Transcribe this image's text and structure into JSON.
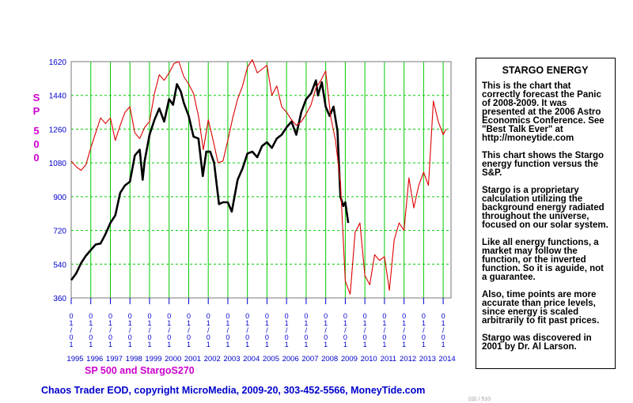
{
  "chart_data": {
    "type": "line",
    "ylabel": "SP 500",
    "legend_title": "SP 500 and StargoS270",
    "ylim": [
      360,
      1620
    ],
    "y_ticks": [
      360,
      540,
      720,
      900,
      1080,
      1260,
      1440,
      1620
    ],
    "y_tick_labels": [
      "360",
      "540",
      "720",
      "900",
      "1080",
      "1260",
      "1440",
      "1620"
    ],
    "xlim": [
      1995.0,
      2014.4
    ],
    "x_ticks": [
      1995,
      1996,
      1997,
      1998,
      1999,
      2000,
      2001,
      2002,
      2003,
      2004,
      2005,
      2006,
      2007,
      2008,
      2009,
      2010,
      2011,
      2012,
      2013,
      2014
    ],
    "x_year_labels": [
      "1995",
      "1996",
      "1997",
      "1998",
      "1999",
      "2000",
      "2001",
      "2002",
      "2003",
      "2004",
      "2005",
      "2006",
      "2007",
      "2008",
      "2009",
      "2010",
      "2011",
      "2012",
      "2013",
      "2014"
    ],
    "x_date_label": "01/01",
    "grid": true,
    "series": [
      {
        "name": "SP 500",
        "color": "#000000",
        "x": [
          1995.0,
          1995.25,
          1995.5,
          1995.75,
          1996.0,
          1996.25,
          1996.5,
          1996.75,
          1997.0,
          1997.25,
          1997.5,
          1997.75,
          1998.0,
          1998.25,
          1998.5,
          1998.65,
          1998.75,
          1999.0,
          1999.25,
          1999.5,
          1999.75,
          2000.0,
          2000.2,
          2000.4,
          2000.6,
          2000.75,
          2001.0,
          2001.25,
          2001.5,
          2001.72,
          2001.9,
          2002.1,
          2002.3,
          2002.55,
          2002.75,
          2003.0,
          2003.2,
          2003.5,
          2003.75,
          2004.0,
          2004.25,
          2004.5,
          2004.75,
          2005.0,
          2005.25,
          2005.5,
          2005.75,
          2006.0,
          2006.25,
          2006.5,
          2006.75,
          2007.0,
          2007.25,
          2007.5,
          2007.6,
          2007.8,
          2008.0,
          2008.2,
          2008.4,
          2008.6,
          2008.75,
          2008.9,
          2009.0,
          2009.15
        ],
        "values": [
          455,
          490,
          545,
          585,
          615,
          645,
          650,
          700,
          760,
          800,
          920,
          960,
          980,
          1120,
          1150,
          990,
          1090,
          1230,
          1310,
          1370,
          1300,
          1420,
          1390,
          1500,
          1460,
          1400,
          1330,
          1220,
          1210,
          1010,
          1140,
          1140,
          1080,
          860,
          870,
          870,
          820,
          990,
          1050,
          1130,
          1140,
          1110,
          1170,
          1190,
          1160,
          1210,
          1230,
          1270,
          1300,
          1230,
          1350,
          1420,
          1450,
          1520,
          1440,
          1510,
          1380,
          1330,
          1380,
          1250,
          900,
          850,
          870,
          760
        ]
      },
      {
        "name": "StargoS270",
        "color": "#dd0000",
        "x": [
          1995.0,
          1995.25,
          1995.5,
          1995.75,
          1996.0,
          1996.25,
          1996.5,
          1996.75,
          1997.0,
          1997.25,
          1997.5,
          1997.75,
          1998.0,
          1998.25,
          1998.5,
          1998.75,
          1999.0,
          1999.25,
          1999.5,
          1999.75,
          2000.0,
          2000.25,
          2000.5,
          2000.75,
          2001.0,
          2001.25,
          2001.5,
          2001.75,
          2002.0,
          2002.25,
          2002.5,
          2002.75,
          2003.0,
          2003.25,
          2003.5,
          2003.75,
          2004.0,
          2004.25,
          2004.5,
          2004.75,
          2005.0,
          2005.25,
          2005.5,
          2005.75,
          2006.0,
          2006.25,
          2006.5,
          2006.75,
          2007.0,
          2007.25,
          2007.5,
          2007.75,
          2008.0,
          2008.25,
          2008.5,
          2008.75,
          2009.0,
          2009.25,
          2009.5,
          2009.75,
          2010.0,
          2010.25,
          2010.5,
          2010.75,
          2011.0,
          2011.25,
          2011.5,
          2011.75,
          2012.0,
          2012.25,
          2012.5,
          2012.75,
          2013.0,
          2013.25,
          2013.5,
          2013.75,
          2014.0,
          2014.15
        ],
        "values": [
          1090,
          1060,
          1040,
          1070,
          1160,
          1240,
          1320,
          1290,
          1320,
          1200,
          1280,
          1350,
          1380,
          1240,
          1210,
          1270,
          1300,
          1450,
          1550,
          1520,
          1560,
          1610,
          1620,
          1540,
          1500,
          1450,
          1330,
          1150,
          1310,
          1200,
          1080,
          1090,
          1200,
          1320,
          1420,
          1490,
          1590,
          1630,
          1560,
          1580,
          1600,
          1440,
          1490,
          1380,
          1350,
          1310,
          1280,
          1300,
          1340,
          1390,
          1480,
          1520,
          1570,
          1330,
          1200,
          980,
          450,
          380,
          710,
          760,
          480,
          430,
          590,
          560,
          580,
          400,
          670,
          760,
          720,
          1000,
          840,
          960,
          1030,
          960,
          1410,
          1300,
          1230,
          1260
        ]
      }
    ]
  },
  "side_panel": {
    "title": "STARGO ENERGY",
    "paragraphs": [
      "This is the chart that correctly forecast the Panic of 2008-2009. It was presented at the 2006 Astro Economics Conference.  See \"Best Talk Ever\" at http://moneytide.com",
      "This chart shows the Stargo energy function versus the S&P.",
      "Stargo is a proprietary calculation utilizing the background energy radiated throughout the universe, focused on our solar system.",
      "Like all energy functions, a market may follow  the function, or the inverted function. So it is aguide, not a guarantee.",
      "Also, time points are more accurate than price levels, since energy is scaled arbitrarily to fit past prices.",
      "Stargo  was discovered in 2001 by Dr. Al Larson."
    ]
  },
  "footer": "Chaos Trader EOD, copyright MicroMedia, 2009-20, 303-452-5566, MoneyTide.com",
  "small_note": "ﾛﾛﾛ / 510",
  "colors": {
    "grid": "#00cc00",
    "axis_ticks": "#0000cc",
    "ylabel": "#cc00cc",
    "legend": "#cc00cc",
    "footer": "#0000cc"
  }
}
